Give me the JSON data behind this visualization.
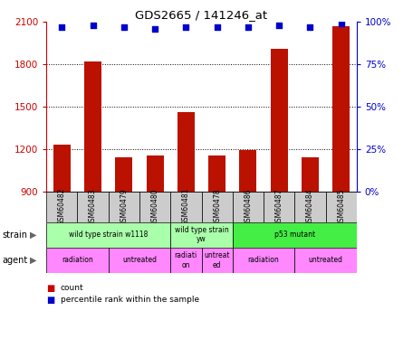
{
  "title": "GDS2665 / 141246_at",
  "samples": [
    "GSM60482",
    "GSM60483",
    "GSM60479",
    "GSM60480",
    "GSM60481",
    "GSM60478",
    "GSM60486",
    "GSM60487",
    "GSM60484",
    "GSM60485"
  ],
  "counts": [
    1230,
    1820,
    1140,
    1155,
    1460,
    1155,
    1195,
    1910,
    1140,
    2070
  ],
  "percentiles": [
    97,
    98,
    97,
    96,
    97,
    97,
    97,
    98,
    97,
    99
  ],
  "ylim_left": [
    900,
    2100
  ],
  "ylim_right": [
    0,
    100
  ],
  "yticks_left": [
    900,
    1200,
    1500,
    1800,
    2100
  ],
  "yticks_right": [
    0,
    25,
    50,
    75,
    100
  ],
  "strain_groups": [
    {
      "label": "wild type strain w1118",
      "start": 0,
      "end": 4,
      "color": "#aaffaa"
    },
    {
      "label": "wild type strain\nyw",
      "start": 4,
      "end": 6,
      "color": "#aaffaa"
    },
    {
      "label": "p53 mutant",
      "start": 6,
      "end": 10,
      "color": "#44ee44"
    }
  ],
  "agent_groups": [
    {
      "label": "radiation",
      "start": 0,
      "end": 2,
      "color": "#ff88ff"
    },
    {
      "label": "untreated",
      "start": 2,
      "end": 4,
      "color": "#ff88ff"
    },
    {
      "label": "radiati\non",
      "start": 4,
      "end": 5,
      "color": "#ff88ff"
    },
    {
      "label": "untreat\ned",
      "start": 5,
      "end": 6,
      "color": "#ff88ff"
    },
    {
      "label": "radiation",
      "start": 6,
      "end": 8,
      "color": "#ff88ff"
    },
    {
      "label": "untreated",
      "start": 8,
      "end": 10,
      "color": "#ff88ff"
    }
  ],
  "bar_color": "#bb1100",
  "dot_color": "#0000cc",
  "grid_color": "#000000",
  "sample_row_color": "#cccccc",
  "label_left_color": "#cc0000",
  "label_right_color": "#0000cc",
  "legend_count_color": "#cc0000",
  "legend_pct_color": "#0000cc",
  "fig_bg": "#ffffff"
}
